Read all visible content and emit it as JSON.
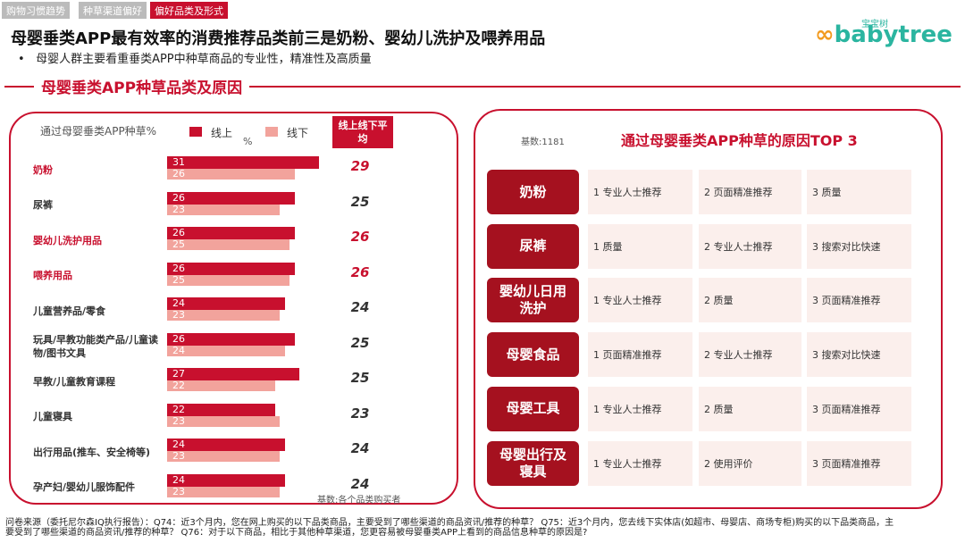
{
  "tabs": [
    "购物习惯趋势",
    "种草渠道偏好",
    "偏好品类及形式"
  ],
  "header": {
    "title": "母婴垂类APP最有效率的消费推荐品类前三是奶粉、婴幼儿洗护及喂养用品",
    "bullet": "母婴人群主要看重垂类APP中种草商品的专业性，精准性及高质量",
    "logo": "babytree",
    "logo_cn": "宝宝树"
  },
  "section_title": "母婴垂类APP种草品类及原因",
  "chart_data": {
    "type": "bar",
    "orientation": "horizontal",
    "title": "通过母婴垂类APP种草%",
    "unit": "%",
    "categories": [
      "奶粉",
      "尿裤",
      "婴幼儿洗护用品",
      "喂养用品",
      "儿童营养品/零食",
      "玩具/早教功能类产品/儿童读物/图书文具",
      "早教/儿童教育课程",
      "儿童寝具",
      "出行用品(推车、安全椅等)",
      "孕产妇/婴幼儿服饰配件"
    ],
    "highlighted": [
      true,
      false,
      true,
      true,
      false,
      false,
      false,
      false,
      false,
      false
    ],
    "highlight_color": "#c8102e",
    "series": [
      {
        "name": "线上",
        "color": "#c8102e",
        "values": [
          31,
          26,
          26,
          26,
          24,
          26,
          27,
          22,
          24,
          24
        ]
      },
      {
        "name": "线下",
        "color": "#f2a39c",
        "values": [
          26,
          23,
          25,
          25,
          23,
          24,
          22,
          23,
          23,
          23
        ]
      }
    ],
    "average": {
      "name": "线上线下平均",
      "values": [
        29,
        25,
        26,
        26,
        24,
        25,
        25,
        23,
        24,
        24
      ]
    },
    "note": "基数:各个品类购买者"
  },
  "reasons": {
    "base": "基数:1181",
    "title": "通过母婴垂类APP种草的原因TOP 3",
    "rows": [
      {
        "label": "奶粉",
        "items": [
          "1 专业人士推荐",
          "2 页面精准推荐",
          "3 质量"
        ]
      },
      {
        "label": "尿裤",
        "items": [
          "1 质量",
          "2 专业人士推荐",
          "3 搜索对比快速"
        ]
      },
      {
        "label": "婴幼儿日用洗护",
        "items": [
          "1 专业人士推荐",
          "2 质量",
          "3 页面精准推荐"
        ]
      },
      {
        "label": "母婴食品",
        "items": [
          "1 页面精准推荐",
          "2 专业人士推荐",
          "3 搜索对比快速"
        ]
      },
      {
        "label": "母婴工具",
        "items": [
          "1 专业人士推荐",
          "2 质量",
          "3 页面精准推荐"
        ]
      },
      {
        "label": "母婴出行及寝具",
        "items": [
          "1 专业人士推荐",
          "2 使用评价",
          "3 页面精准推荐"
        ]
      }
    ]
  },
  "footer": "问卷来源（委托尼尔森IQ执行报告）：Q74：近3个月内，您在网上购买的以下品类商品，主要受到了哪些渠道的商品资讯/推荐的种草？ Q75：近3个月内，您去线下实体店(如超市、母婴店、商场专柜)购买的以下品类商品，主要受到了哪些渠道的商品资讯/推荐的种草？ Q76：对于以下商品，相比于其他种草渠道，您更容易被母婴垂类APP上看到的商品信息种草的原因是?"
}
